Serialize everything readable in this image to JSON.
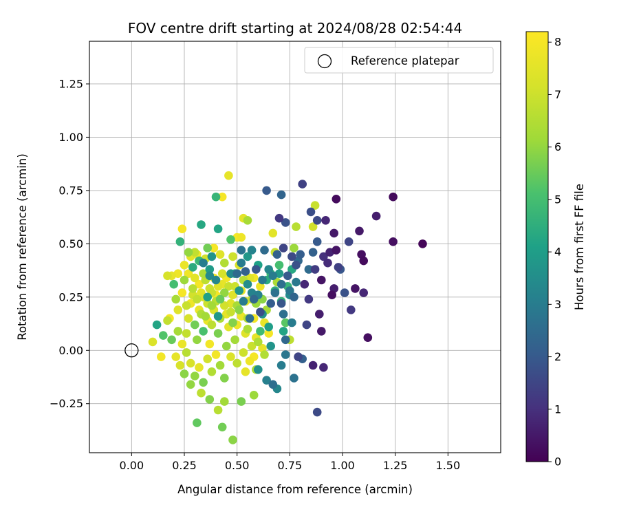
{
  "chart_data": {
    "type": "scatter",
    "title": "FOV centre drift starting at 2024/08/28 02:54:44",
    "xlabel": "Angular distance from reference (arcmin)",
    "ylabel": "Rotation from reference (arcmin)",
    "xlim": [
      -0.2,
      1.75
    ],
    "ylim": [
      -0.48,
      1.45
    ],
    "xticks": [
      "0.00",
      "0.25",
      "0.50",
      "0.75",
      "1.00",
      "1.25",
      "1.50"
    ],
    "xtick_values": [
      0,
      0.25,
      0.5,
      0.75,
      1.0,
      1.25,
      1.5
    ],
    "yticks": [
      "−0.25",
      "0.00",
      "0.25",
      "0.50",
      "0.75",
      "1.00",
      "1.25"
    ],
    "ytick_values": [
      -0.25,
      0,
      0.25,
      0.5,
      0.75,
      1.0,
      1.25
    ],
    "grid": true,
    "legend": {
      "placement": "top-right",
      "entries": [
        {
          "label": "Reference platepar",
          "marker": "open-circle"
        }
      ]
    },
    "reference_point": {
      "x": 0.0,
      "y": 0.0
    },
    "colorbar": {
      "label": "Hours from first FF file",
      "colormap": "viridis",
      "range": [
        0,
        8.2
      ],
      "ticks": [
        "0",
        "1",
        "2",
        "3",
        "4",
        "5",
        "6",
        "7",
        "8"
      ],
      "tick_values": [
        0,
        1,
        2,
        3,
        4,
        5,
        6,
        7,
        8
      ]
    },
    "points": [
      [
        1.38,
        0.5,
        0.1
      ],
      [
        1.24,
        0.72,
        0.2
      ],
      [
        1.24,
        0.51,
        0.3
      ],
      [
        1.16,
        0.63,
        0.6
      ],
      [
        1.12,
        0.06,
        0.3
      ],
      [
        1.1,
        0.42,
        0.2
      ],
      [
        1.09,
        0.45,
        0.3
      ],
      [
        1.1,
        0.27,
        0.8
      ],
      [
        1.08,
        0.56,
        0.5
      ],
      [
        1.06,
        0.29,
        0.4
      ],
      [
        1.04,
        0.19,
        1.2
      ],
      [
        1.03,
        0.51,
        1.5
      ],
      [
        1.01,
        0.27,
        1.8
      ],
      [
        0.99,
        0.38,
        1.9
      ],
      [
        0.98,
        0.39,
        1.4
      ],
      [
        0.97,
        0.71,
        0.2
      ],
      [
        0.97,
        0.47,
        0.4
      ],
      [
        0.96,
        0.55,
        0.5
      ],
      [
        0.96,
        0.29,
        0.6
      ],
      [
        0.95,
        0.26,
        0.3
      ],
      [
        0.94,
        0.46,
        0.7
      ],
      [
        0.93,
        0.41,
        0.9
      ],
      [
        0.92,
        0.61,
        0.8
      ],
      [
        0.91,
        0.44,
        1.0
      ],
      [
        0.9,
        0.09,
        0.5
      ],
      [
        0.9,
        0.33,
        0.4
      ],
      [
        0.89,
        0.17,
        0.6
      ],
      [
        0.88,
        0.61,
        1.6
      ],
      [
        0.88,
        0.51,
        2.0
      ],
      [
        0.87,
        0.38,
        1.3
      ],
      [
        0.86,
        -0.07,
        0.7
      ],
      [
        0.86,
        0.46,
        2.2
      ],
      [
        0.85,
        0.65,
        1.7
      ],
      [
        0.84,
        0.38,
        2.5
      ],
      [
        0.84,
        0.24,
        1.2
      ],
      [
        0.83,
        0.12,
        1.5
      ],
      [
        0.82,
        0.31,
        0.8
      ],
      [
        0.81,
        0.78,
        1.4
      ],
      [
        0.8,
        0.45,
        2.1
      ],
      [
        0.79,
        0.42,
        2.4
      ],
      [
        0.78,
        0.4,
        1.8
      ],
      [
        0.77,
        0.25,
        2.3
      ],
      [
        0.76,
        0.44,
        1.6
      ],
      [
        0.75,
        0.28,
        2.8
      ],
      [
        0.74,
        0.35,
        2.0
      ],
      [
        0.73,
        0.6,
        1.8
      ],
      [
        0.72,
        0.48,
        1.5
      ],
      [
        0.71,
        0.31,
        2.6
      ],
      [
        0.71,
        0.22,
        1.9
      ],
      [
        0.7,
        0.62,
        1.2
      ],
      [
        0.69,
        0.45,
        2.2
      ],
      [
        0.68,
        0.27,
        2.7
      ],
      [
        0.67,
        0.35,
        3.0
      ],
      [
        0.66,
        0.22,
        2.1
      ],
      [
        0.65,
        0.38,
        3.3
      ],
      [
        0.64,
        0.75,
        2.0
      ],
      [
        0.63,
        0.47,
        2.5
      ],
      [
        0.62,
        0.33,
        2.9
      ],
      [
        0.61,
        0.18,
        1.7
      ],
      [
        0.6,
        0.26,
        3.1
      ],
      [
        0.59,
        0.38,
        1.9
      ],
      [
        0.58,
        0.24,
        2.4
      ],
      [
        0.57,
        0.47,
        3.2
      ],
      [
        0.56,
        0.15,
        2.6
      ],
      [
        0.55,
        0.31,
        3.5
      ],
      [
        0.54,
        0.37,
        2.2
      ],
      [
        0.53,
        0.23,
        3.0
      ],
      [
        0.52,
        0.47,
        2.7
      ],
      [
        0.51,
        0.28,
        3.8
      ],
      [
        0.5,
        0.36,
        2.5
      ],
      [
        0.71,
        0.73,
        2.3
      ],
      [
        0.72,
        0.17,
        2.6
      ],
      [
        0.73,
        0.05,
        2.4
      ],
      [
        0.75,
        0.26,
        3.4
      ],
      [
        0.76,
        0.13,
        3.0
      ],
      [
        0.78,
        0.32,
        2.9
      ],
      [
        0.79,
        -0.03,
        1.5
      ],
      [
        0.81,
        -0.04,
        2.2
      ],
      [
        0.88,
        -0.29,
        1.6
      ],
      [
        0.91,
        -0.08,
        0.8
      ],
      [
        0.77,
        -0.13,
        2.7
      ],
      [
        0.73,
        -0.02,
        2.8
      ],
      [
        0.71,
        -0.07,
        3.0
      ],
      [
        0.69,
        -0.18,
        3.3
      ],
      [
        0.67,
        -0.16,
        2.6
      ],
      [
        0.64,
        -0.14,
        3.1
      ],
      [
        0.6,
        -0.09,
        3.6
      ],
      [
        0.43,
        -0.36,
        5.6
      ],
      [
        0.48,
        -0.42,
        5.9
      ],
      [
        0.31,
        -0.34,
        5.4
      ],
      [
        0.41,
        -0.28,
        6.6
      ],
      [
        0.37,
        -0.23,
        5.8
      ],
      [
        0.44,
        -0.24,
        6.2
      ],
      [
        0.52,
        -0.24,
        5.7
      ],
      [
        0.58,
        -0.21,
        6.1
      ],
      [
        0.33,
        -0.2,
        6.7
      ],
      [
        0.28,
        -0.16,
        6.0
      ],
      [
        0.25,
        -0.11,
        5.9
      ],
      [
        0.23,
        -0.07,
        7.2
      ],
      [
        0.21,
        -0.03,
        7.6
      ],
      [
        0.14,
        -0.03,
        7.9
      ],
      [
        0.1,
        0.04,
        7.3
      ],
      [
        0.12,
        0.12,
        4.2
      ],
      [
        0.15,
        0.07,
        5.2
      ],
      [
        0.19,
        0.05,
        5.5
      ],
      [
        0.17,
        0.14,
        6.8
      ],
      [
        0.18,
        0.15,
        8.0
      ],
      [
        0.21,
        0.24,
        6.3
      ],
      [
        0.2,
        0.31,
        5.0
      ],
      [
        0.19,
        0.35,
        7.6
      ],
      [
        0.17,
        0.35,
        7.2
      ],
      [
        0.22,
        0.36,
        7.8
      ],
      [
        0.23,
        0.51,
        4.6
      ],
      [
        0.24,
        0.57,
        8.0
      ],
      [
        0.25,
        0.4,
        7.7
      ],
      [
        0.27,
        0.46,
        6.0
      ],
      [
        0.28,
        0.44,
        7.5
      ],
      [
        0.29,
        0.39,
        4.4
      ],
      [
        0.3,
        0.46,
        6.8
      ],
      [
        0.31,
        0.45,
        8.0
      ],
      [
        0.32,
        0.42,
        4.8
      ],
      [
        0.33,
        0.59,
        4.3
      ],
      [
        0.34,
        0.36,
        6.4
      ],
      [
        0.35,
        0.43,
        7.1
      ],
      [
        0.36,
        0.48,
        5.6
      ],
      [
        0.37,
        0.38,
        3.9
      ],
      [
        0.38,
        0.27,
        6.9
      ],
      [
        0.39,
        0.48,
        8.0
      ],
      [
        0.4,
        0.72,
        4.7
      ],
      [
        0.41,
        0.57,
        4.2
      ],
      [
        0.42,
        0.45,
        7.4
      ],
      [
        0.43,
        0.72,
        8.0
      ],
      [
        0.44,
        0.41,
        6.5
      ],
      [
        0.45,
        0.34,
        7.9
      ],
      [
        0.46,
        0.82,
        7.6
      ],
      [
        0.47,
        0.52,
        5.2
      ],
      [
        0.48,
        0.44,
        7.0
      ],
      [
        0.49,
        0.36,
        4.4
      ],
      [
        0.5,
        0.53,
        8.0
      ],
      [
        0.51,
        0.4,
        7.3
      ],
      [
        0.52,
        0.53,
        7.8
      ],
      [
        0.53,
        0.62,
        7.5
      ],
      [
        0.55,
        0.61,
        6.3
      ],
      [
        0.56,
        0.34,
        7.4
      ],
      [
        0.57,
        0.24,
        6.8
      ],
      [
        0.58,
        0.15,
        7.9
      ],
      [
        0.59,
        0.06,
        7.6
      ],
      [
        0.6,
        0.04,
        6.4
      ],
      [
        0.61,
        0.3,
        7.8
      ],
      [
        0.62,
        0.24,
        5.9
      ],
      [
        0.63,
        0.13,
        7.7
      ],
      [
        0.64,
        0.19,
        6.3
      ],
      [
        0.65,
        0.08,
        8.0
      ],
      [
        0.66,
        0.36,
        4.8
      ],
      [
        0.67,
        0.55,
        7.5
      ],
      [
        0.68,
        0.46,
        6.9
      ],
      [
        0.69,
        0.32,
        6.4
      ],
      [
        0.7,
        0.4,
        5.0
      ],
      [
        0.71,
        0.23,
        4.6
      ],
      [
        0.73,
        0.13,
        5.3
      ],
      [
        0.75,
        0.05,
        6.7
      ],
      [
        0.77,
        0.48,
        6.1
      ],
      [
        0.78,
        0.58,
        6.6
      ],
      [
        0.87,
        0.68,
        6.9
      ],
      [
        0.86,
        0.58,
        7.1
      ],
      [
        0.26,
        0.08,
        6.8
      ],
      [
        0.27,
        0.15,
        7.2
      ],
      [
        0.28,
        0.22,
        7.8
      ],
      [
        0.29,
        0.29,
        6.6
      ],
      [
        0.3,
        0.12,
        5.6
      ],
      [
        0.31,
        0.05,
        6.0
      ],
      [
        0.32,
        0.19,
        7.7
      ],
      [
        0.33,
        0.27,
        7.5
      ],
      [
        0.34,
        0.09,
        5.1
      ],
      [
        0.35,
        0.16,
        6.2
      ],
      [
        0.36,
        0.22,
        7.0
      ],
      [
        0.37,
        0.03,
        7.9
      ],
      [
        0.38,
        0.12,
        6.7
      ],
      [
        0.39,
        0.19,
        7.3
      ],
      [
        0.4,
        0.26,
        8.0
      ],
      [
        0.41,
        0.08,
        5.7
      ],
      [
        0.42,
        0.15,
        6.4
      ],
      [
        0.43,
        0.31,
        7.6
      ],
      [
        0.44,
        0.21,
        7.1
      ],
      [
        0.45,
        0.02,
        6.0
      ],
      [
        0.46,
        0.11,
        7.5
      ],
      [
        0.47,
        0.18,
        6.9
      ],
      [
        0.48,
        0.26,
        7.4
      ],
      [
        0.49,
        0.05,
        6.2
      ],
      [
        0.5,
        0.12,
        7.8
      ],
      [
        0.51,
        0.19,
        5.9
      ],
      [
        0.52,
        0.28,
        7.7
      ],
      [
        0.53,
        -0.01,
        7.0
      ],
      [
        0.54,
        0.08,
        7.4
      ],
      [
        0.55,
        0.15,
        6.5
      ],
      [
        0.56,
        -0.05,
        7.8
      ],
      [
        0.57,
        0.02,
        6.9
      ],
      [
        0.58,
        -0.03,
        8.0
      ],
      [
        0.59,
        -0.09,
        6.4
      ],
      [
        0.54,
        -0.1,
        7.6
      ],
      [
        0.5,
        -0.06,
        6.7
      ],
      [
        0.47,
        -0.03,
        7.3
      ],
      [
        0.44,
        -0.13,
        5.8
      ],
      [
        0.42,
        -0.07,
        6.2
      ],
      [
        0.4,
        -0.02,
        7.9
      ],
      [
        0.38,
        -0.1,
        6.5
      ],
      [
        0.36,
        -0.04,
        7.1
      ],
      [
        0.34,
        -0.15,
        5.7
      ],
      [
        0.32,
        -0.08,
        7.6
      ],
      [
        0.3,
        -0.12,
        6.0
      ],
      [
        0.28,
        -0.06,
        7.2
      ],
      [
        0.26,
        -0.01,
        6.6
      ],
      [
        0.24,
        0.03,
        7.7
      ],
      [
        0.22,
        0.09,
        6.3
      ],
      [
        0.22,
        0.19,
        7.4
      ],
      [
        0.24,
        0.27,
        8.0
      ],
      [
        0.25,
        0.33,
        6.1
      ],
      [
        0.26,
        0.21,
        6.9
      ],
      [
        0.27,
        0.36,
        7.8
      ],
      [
        0.29,
        0.26,
        7.1
      ],
      [
        0.3,
        0.34,
        7.5
      ],
      [
        0.31,
        0.24,
        6.8
      ],
      [
        0.32,
        0.31,
        8.0
      ],
      [
        0.33,
        0.17,
        6.4
      ],
      [
        0.34,
        0.25,
        7.3
      ],
      [
        0.35,
        0.33,
        6.7
      ],
      [
        0.36,
        0.14,
        7.7
      ],
      [
        0.37,
        0.29,
        7.0
      ],
      [
        0.38,
        0.21,
        6.2
      ],
      [
        0.39,
        0.34,
        7.9
      ],
      [
        0.4,
        0.23,
        6.6
      ],
      [
        0.41,
        0.3,
        7.4
      ],
      [
        0.42,
        0.24,
        5.5
      ],
      [
        0.43,
        0.36,
        7.2
      ],
      [
        0.44,
        0.27,
        6.0
      ],
      [
        0.45,
        0.17,
        7.6
      ],
      [
        0.46,
        0.3,
        6.9
      ],
      [
        0.47,
        0.22,
        7.4
      ],
      [
        0.48,
        0.13,
        5.8
      ],
      [
        0.49,
        0.3,
        7.0
      ],
      [
        0.5,
        0.21,
        6.3
      ],
      [
        0.52,
        0.16,
        7.7
      ],
      [
        0.53,
        0.33,
        6.6
      ],
      [
        0.54,
        0.23,
        7.5
      ],
      [
        0.55,
        0.1,
        6.4
      ],
      [
        0.58,
        0.34,
        7.9
      ],
      [
        0.59,
        0.22,
        6.1
      ],
      [
        0.61,
        0.09,
        4.9
      ],
      [
        0.62,
        0.01,
        7.6
      ],
      [
        0.63,
        -0.02,
        6.5
      ],
      [
        0.47,
        0.36,
        3.4
      ],
      [
        0.52,
        0.41,
        3.0
      ],
      [
        0.55,
        0.44,
        3.8
      ],
      [
        0.57,
        0.27,
        3.2
      ],
      [
        0.6,
        0.4,
        4.1
      ],
      [
        0.62,
        0.17,
        3.6
      ],
      [
        0.64,
        0.33,
        4.4
      ],
      [
        0.65,
        0.11,
        4.0
      ],
      [
        0.66,
        0.02,
        3.7
      ],
      [
        0.68,
        0.28,
        4.5
      ],
      [
        0.7,
        0.36,
        3.9
      ],
      [
        0.72,
        0.09,
        4.2
      ],
      [
        0.74,
        0.3,
        4.7
      ],
      [
        0.76,
        0.38,
        4.3
      ],
      [
        0.37,
        0.35,
        3.4
      ],
      [
        0.34,
        0.41,
        3.0
      ],
      [
        0.38,
        0.44,
        3.7
      ],
      [
        0.4,
        0.33,
        3.3
      ],
      [
        0.36,
        0.25,
        4.1
      ],
      [
        0.41,
        0.16,
        3.8
      ]
    ]
  }
}
